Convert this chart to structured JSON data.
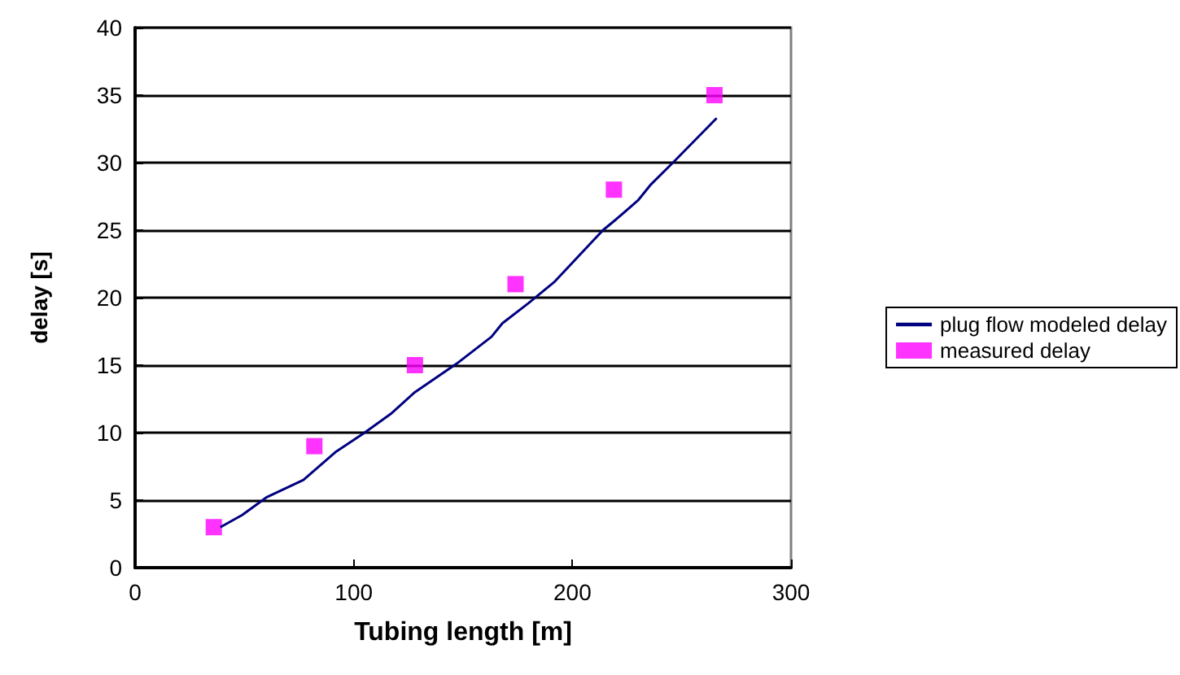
{
  "chart_data": {
    "type": "line",
    "xlabel": "Tubing length [m]",
    "ylabel": "delay [s]",
    "xlim": [
      0,
      300
    ],
    "xticks": [
      0,
      100,
      200,
      300
    ],
    "ylim": [
      0,
      40
    ],
    "yticks": [
      0,
      5,
      10,
      15,
      20,
      25,
      30,
      35,
      40
    ],
    "grid": "y",
    "legend": "right",
    "series": [
      {
        "name": "plug flow modeled delay",
        "color": "#000080",
        "marker": "none",
        "x": [
          39,
          49,
          60,
          77,
          92,
          105,
          117,
          128,
          147,
          163,
          168,
          180,
          192,
          214,
          220,
          230,
          236,
          246,
          266
        ],
        "values": [
          3.0,
          3.9,
          5.2,
          6.5,
          8.6,
          10.0,
          11.4,
          13.0,
          15.1,
          17.1,
          18.1,
          19.6,
          21.2,
          25.0,
          25.8,
          27.2,
          28.4,
          30.0,
          33.3
        ]
      },
      {
        "name": "measured delay",
        "type": "scatter",
        "color": "#ff00ff",
        "marker": "square",
        "x": [
          36,
          82,
          128,
          174,
          219,
          265
        ],
        "values": [
          3,
          9,
          15,
          21,
          28,
          35
        ]
      }
    ]
  }
}
